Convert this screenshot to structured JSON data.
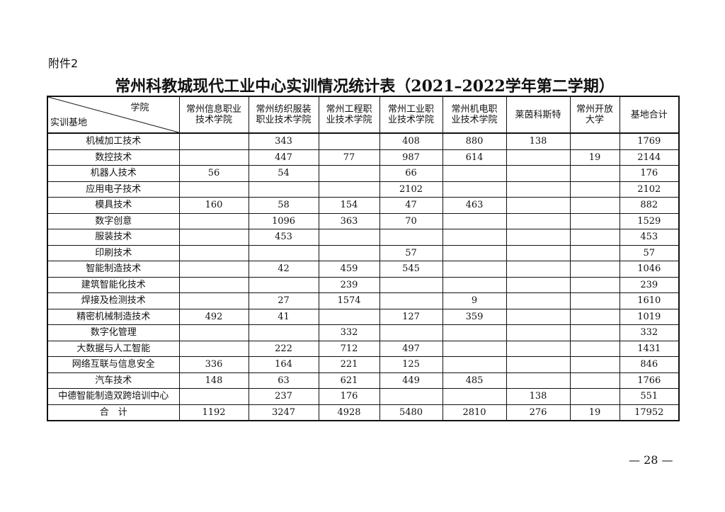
{
  "attachment_label": "附件2",
  "title": "常州科教城现代工业中心实训情况统计表（2021–2022学年第二学期）",
  "table": {
    "corner_top": "学院",
    "corner_bottom": "实训基地",
    "columns": [
      [
        "常州信息职业",
        "技术学院"
      ],
      [
        "常州纺织服装",
        "职业技术学院"
      ],
      [
        "常州工程职",
        "业技术学院"
      ],
      [
        "常州工业职",
        "业技术学院"
      ],
      [
        "常州机电职",
        "业技术学院"
      ],
      [
        "莱茵科斯特",
        ""
      ],
      [
        "常州开放",
        "大学"
      ],
      [
        "基地合计",
        ""
      ]
    ],
    "rows": [
      {
        "name": "机械加工技术",
        "values": [
          "",
          "343",
          "",
          "408",
          "880",
          "138",
          "",
          "1769"
        ]
      },
      {
        "name": "数控技术",
        "values": [
          "",
          "447",
          "77",
          "987",
          "614",
          "",
          "19",
          "2144"
        ]
      },
      {
        "name": "机器人技术",
        "values": [
          "56",
          "54",
          "",
          "66",
          "",
          "",
          "",
          "176"
        ]
      },
      {
        "name": "应用电子技术",
        "values": [
          "",
          "",
          "",
          "2102",
          "",
          "",
          "",
          "2102"
        ]
      },
      {
        "name": "模具技术",
        "values": [
          "160",
          "58",
          "154",
          "47",
          "463",
          "",
          "",
          "882"
        ]
      },
      {
        "name": "数字创意",
        "values": [
          "",
          "1096",
          "363",
          "70",
          "",
          "",
          "",
          "1529"
        ]
      },
      {
        "name": "服装技术",
        "values": [
          "",
          "453",
          "",
          "",
          "",
          "",
          "",
          "453"
        ]
      },
      {
        "name": "印刷技术",
        "values": [
          "",
          "",
          "",
          "57",
          "",
          "",
          "",
          "57"
        ]
      },
      {
        "name": "智能制造技术",
        "values": [
          "",
          "42",
          "459",
          "545",
          "",
          "",
          "",
          "1046"
        ]
      },
      {
        "name": "建筑智能化技术",
        "values": [
          "",
          "",
          "239",
          "",
          "",
          "",
          "",
          "239"
        ]
      },
      {
        "name": "焊接及检测技术",
        "values": [
          "",
          "27",
          "1574",
          "",
          "9",
          "",
          "",
          "1610"
        ]
      },
      {
        "name": "精密机械制造技术",
        "values": [
          "492",
          "41",
          "",
          "127",
          "359",
          "",
          "",
          "1019"
        ]
      },
      {
        "name": "数字化管理",
        "values": [
          "",
          "",
          "332",
          "",
          "",
          "",
          "",
          "332"
        ]
      },
      {
        "name": "大数据与人工智能",
        "values": [
          "",
          "222",
          "712",
          "497",
          "",
          "",
          "",
          "1431"
        ]
      },
      {
        "name": "网络互联与信息安全",
        "values": [
          "336",
          "164",
          "221",
          "125",
          "",
          "",
          "",
          "846"
        ]
      },
      {
        "name": "汽车技术",
        "values": [
          "148",
          "63",
          "621",
          "449",
          "485",
          "",
          "",
          "1766"
        ]
      },
      {
        "name": "中德智能制造双跨培训中心",
        "values": [
          "",
          "237",
          "176",
          "",
          "",
          "138",
          "",
          "551"
        ]
      },
      {
        "name": "合　计",
        "values": [
          "1192",
          "3247",
          "4928",
          "5480",
          "2810",
          "276",
          "19",
          "17952"
        ]
      }
    ]
  },
  "page_number": "— 28 —"
}
